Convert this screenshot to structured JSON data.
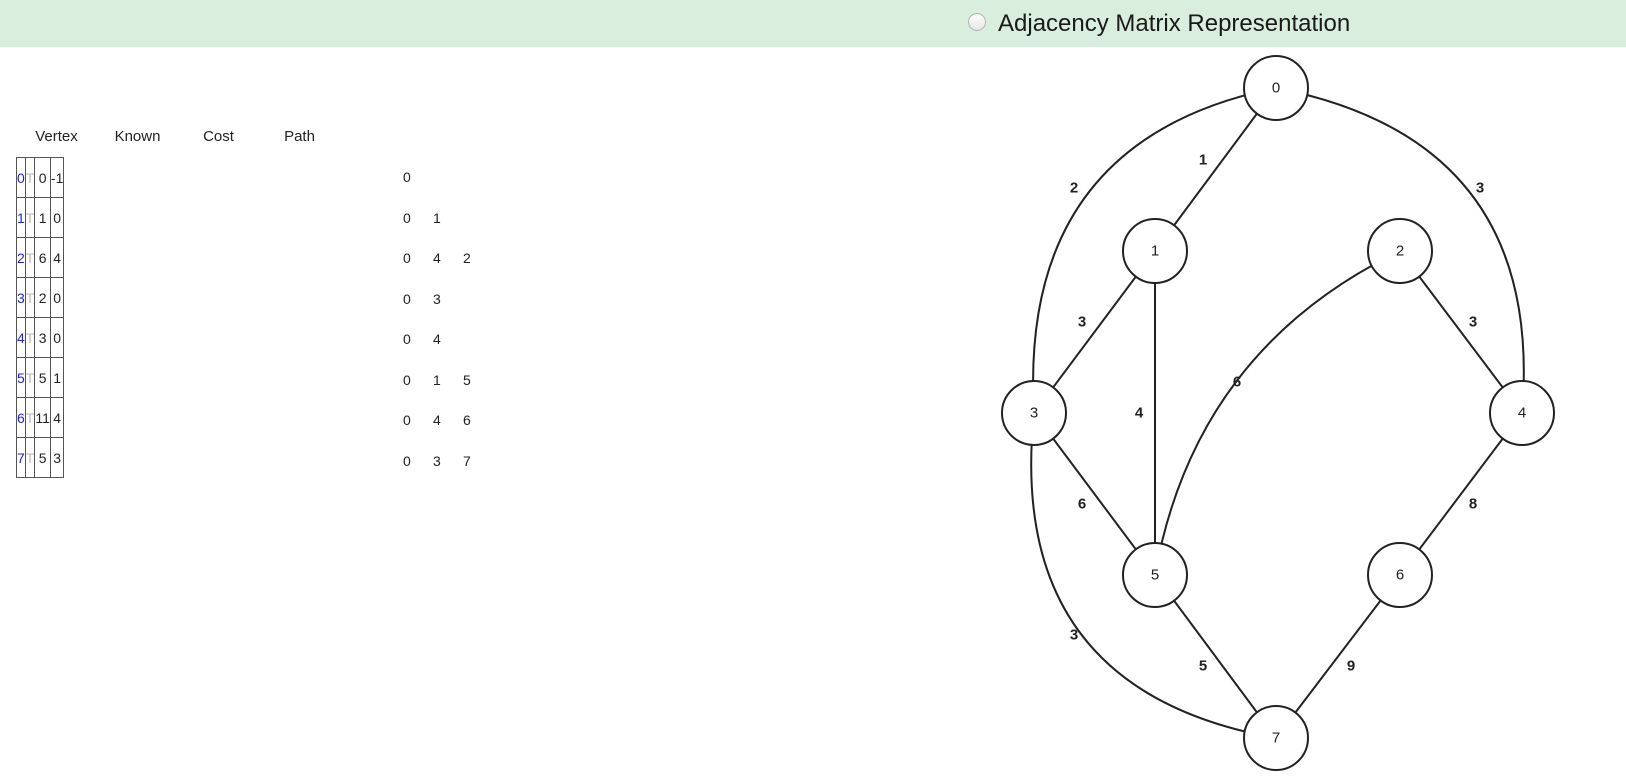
{
  "header": {
    "radio_label": "Adjacency Matrix Representation"
  },
  "table": {
    "headers": [
      "Vertex",
      "Known",
      "Cost",
      "Path"
    ],
    "rows": [
      {
        "vertex": "0",
        "known": "T",
        "cost": "0",
        "path": "-1",
        "route": [
          "0"
        ]
      },
      {
        "vertex": "1",
        "known": "T",
        "cost": "1",
        "path": "0",
        "route": [
          "0",
          "1"
        ]
      },
      {
        "vertex": "2",
        "known": "T",
        "cost": "6",
        "path": "4",
        "route": [
          "0",
          "4",
          "2"
        ]
      },
      {
        "vertex": "3",
        "known": "T",
        "cost": "2",
        "path": "0",
        "route": [
          "0",
          "3"
        ]
      },
      {
        "vertex": "4",
        "known": "T",
        "cost": "3",
        "path": "0",
        "route": [
          "0",
          "4"
        ]
      },
      {
        "vertex": "5",
        "known": "T",
        "cost": "5",
        "path": "1",
        "route": [
          "0",
          "1",
          "5"
        ]
      },
      {
        "vertex": "6",
        "known": "T",
        "cost": "11",
        "path": "4",
        "route": [
          "0",
          "4",
          "6"
        ]
      },
      {
        "vertex": "7",
        "known": "T",
        "cost": "5",
        "path": "3",
        "route": [
          "0",
          "3",
          "7"
        ]
      }
    ]
  },
  "graph": {
    "nodes": [
      "0",
      "1",
      "2",
      "3",
      "4",
      "5",
      "6",
      "7"
    ],
    "edges": [
      {
        "from": "0",
        "to": "1",
        "weight": "1"
      },
      {
        "from": "0",
        "to": "3",
        "weight": "2"
      },
      {
        "from": "0",
        "to": "4",
        "weight": "3"
      },
      {
        "from": "1",
        "to": "3",
        "weight": "3"
      },
      {
        "from": "1",
        "to": "5",
        "weight": "4"
      },
      {
        "from": "2",
        "to": "4",
        "weight": "3"
      },
      {
        "from": "2",
        "to": "5",
        "weight": "6"
      },
      {
        "from": "3",
        "to": "5",
        "weight": "6"
      },
      {
        "from": "3",
        "to": "7",
        "weight": "3"
      },
      {
        "from": "4",
        "to": "6",
        "weight": "8"
      },
      {
        "from": "5",
        "to": "7",
        "weight": "5"
      },
      {
        "from": "6",
        "to": "7",
        "weight": "9"
      }
    ]
  },
  "colors": {
    "header_bg": "#d9eedd",
    "vertex_text": "#2222dd",
    "known_text": "#bcbcbc",
    "edge": "#222222"
  }
}
